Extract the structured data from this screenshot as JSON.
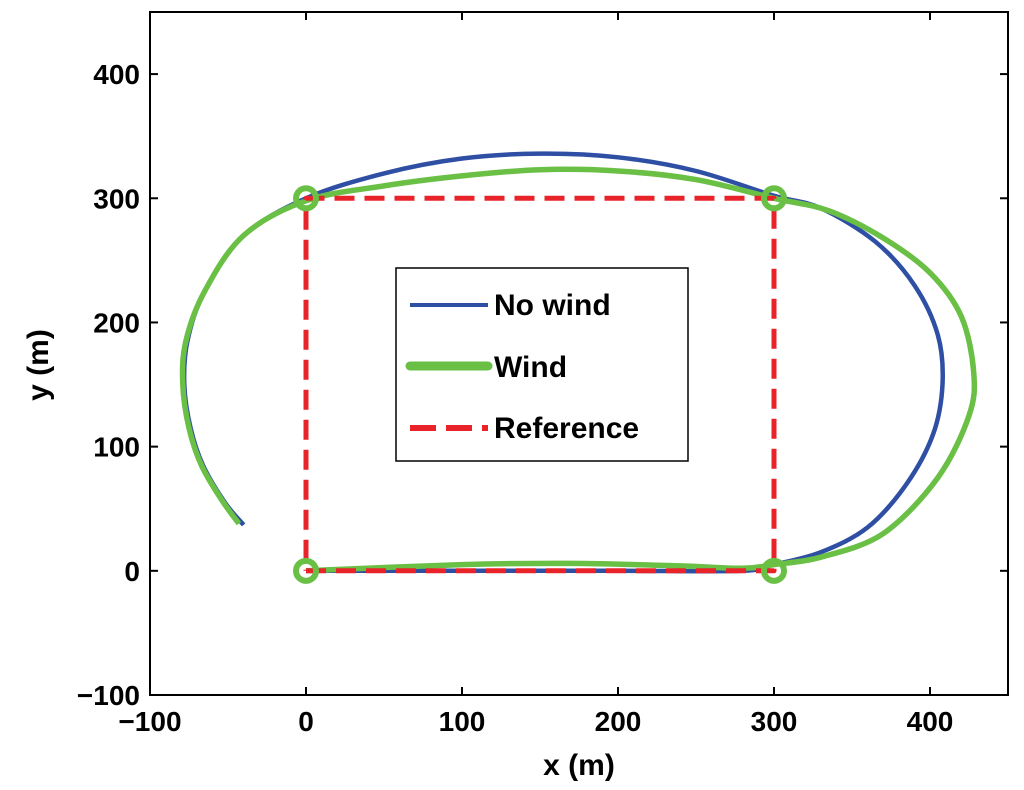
{
  "chart_data": {
    "type": "line",
    "title": "",
    "xlabel": "x (m)",
    "ylabel": "y (m)",
    "xlim": [
      -100,
      450
    ],
    "ylim": [
      -100,
      450
    ],
    "xticks": [
      -100,
      0,
      100,
      200,
      300,
      400
    ],
    "yticks": [
      -100,
      0,
      100,
      200,
      300,
      400
    ],
    "xtick_labels": [
      "−100",
      "0",
      "100",
      "200",
      "300",
      "400"
    ],
    "ytick_labels": [
      "−100",
      "0",
      "100",
      "200",
      "300",
      "400"
    ],
    "grid": false,
    "legend_position": "center",
    "series": [
      {
        "name": "No wind",
        "color": "#2e4fa3",
        "style": "solid",
        "points": [
          [
            0,
            0
          ],
          [
            100,
            0
          ],
          [
            200,
            0
          ],
          [
            280,
            0
          ],
          [
            300,
            5
          ],
          [
            330,
            15
          ],
          [
            360,
            35
          ],
          [
            385,
            70
          ],
          [
            402,
            110
          ],
          [
            408,
            150
          ],
          [
            405,
            190
          ],
          [
            390,
            230
          ],
          [
            365,
            265
          ],
          [
            330,
            292
          ],
          [
            300,
            302
          ],
          [
            250,
            322
          ],
          [
            200,
            333
          ],
          [
            150,
            336
          ],
          [
            100,
            332
          ],
          [
            50,
            320
          ],
          [
            0,
            300
          ],
          [
            -40,
            270
          ],
          [
            -65,
            225
          ],
          [
            -76,
            185
          ],
          [
            -78,
            150
          ],
          [
            -74,
            115
          ],
          [
            -66,
            85
          ],
          [
            -52,
            55
          ],
          [
            -40,
            37
          ]
        ]
      },
      {
        "name": "Wind",
        "color": "#6abf45",
        "style": "solid",
        "points": [
          [
            0,
            0
          ],
          [
            100,
            5
          ],
          [
            170,
            6
          ],
          [
            240,
            4
          ],
          [
            280,
            2
          ],
          [
            300,
            5
          ],
          [
            330,
            11
          ],
          [
            370,
            30
          ],
          [
            405,
            75
          ],
          [
            425,
            125
          ],
          [
            428,
            160
          ],
          [
            420,
            205
          ],
          [
            400,
            240
          ],
          [
            370,
            268
          ],
          [
            335,
            290
          ],
          [
            300,
            300
          ],
          [
            250,
            315
          ],
          [
            200,
            322
          ],
          [
            150,
            323
          ],
          [
            100,
            318
          ],
          [
            50,
            310
          ],
          [
            0,
            298
          ],
          [
            -40,
            270
          ],
          [
            -65,
            225
          ],
          [
            -77,
            185
          ],
          [
            -79,
            150
          ],
          [
            -75,
            115
          ],
          [
            -67,
            85
          ],
          [
            -54,
            57
          ],
          [
            -43,
            38
          ]
        ]
      },
      {
        "name": "Reference",
        "color": "#e8232a",
        "style": "dashed",
        "points": [
          [
            0,
            0
          ],
          [
            300,
            0
          ],
          [
            300,
            300
          ],
          [
            0,
            300
          ],
          [
            0,
            0
          ]
        ]
      }
    ],
    "markers": {
      "color": "#6abf45",
      "points": [
        [
          0,
          0
        ],
        [
          300,
          0
        ],
        [
          300,
          300
        ],
        [
          0,
          300
        ]
      ]
    }
  }
}
